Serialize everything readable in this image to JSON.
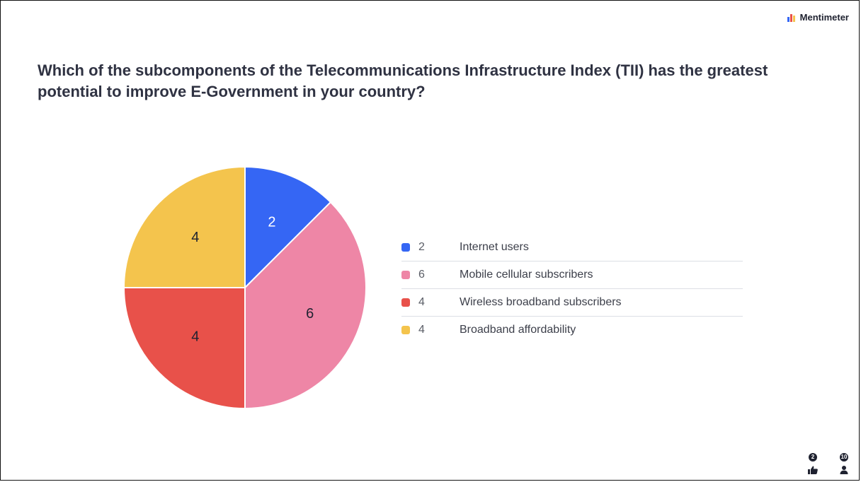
{
  "brand": {
    "name": "Mentimeter",
    "icon": "mentimeter-bars-logo"
  },
  "question": "Which of the subcomponents of the Telecommunications Infrastructure Index (TII) has the greatest potential to improve E-Government in your country?",
  "colors": {
    "blue": "#3566f4",
    "pink": "#ee86a6",
    "red": "#e8514a",
    "yellow": "#f4c44d",
    "text": "#2f3242"
  },
  "chart_data": {
    "type": "pie",
    "title": "",
    "categories": [
      "Internet users",
      "Mobile cellular subscribers",
      "Wireless broadband subscribers",
      "Broadband affordability"
    ],
    "values": [
      2,
      6,
      4,
      4
    ],
    "colors": [
      "#3566f4",
      "#ee86a6",
      "#e8514a",
      "#f4c44d"
    ],
    "slice_label_colors": [
      "#ffffff",
      "#1f2230",
      "#1f2230",
      "#1f2230"
    ],
    "start_angle_deg": 0,
    "direction": "clockwise",
    "legend_position": "right"
  },
  "footer": {
    "reactions": {
      "count": "2",
      "icon": "thumbs-up-icon"
    },
    "participants": {
      "count": "10",
      "icon": "person-icon"
    }
  }
}
